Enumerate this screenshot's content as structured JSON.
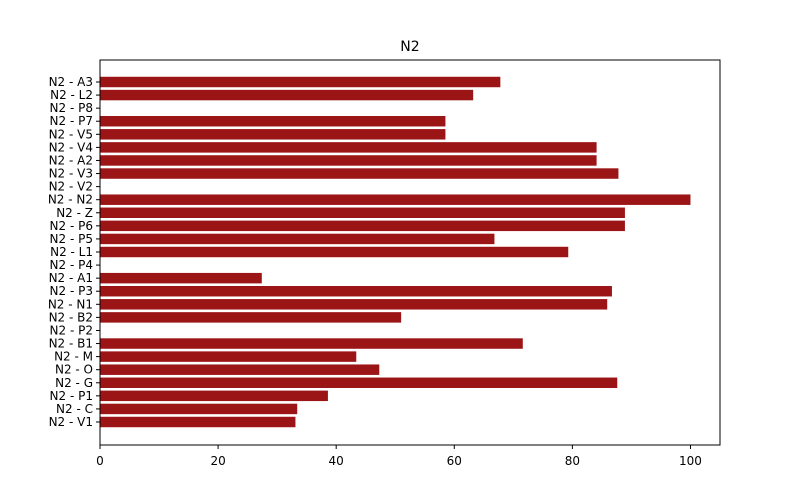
{
  "chart_data": {
    "type": "bar",
    "orientation": "horizontal",
    "title": "N2",
    "xlabel": "",
    "ylabel": "",
    "xlim": [
      0,
      105
    ],
    "x_ticks": [
      0,
      20,
      40,
      60,
      80,
      100
    ],
    "grid": false,
    "bar_color": "#9b1516",
    "categories": [
      "N2 - A3",
      "N2 - L2",
      "N2 - P8",
      "N2 - P7",
      "N2 - V5",
      "N2 - V4",
      "N2 - A2",
      "N2 - V3",
      "N2 - V2",
      "N2 - N2",
      "N2 - Z",
      "N2 - P6",
      "N2 - P5",
      "N2 - L1",
      "N2 - P4",
      "N2 - A1",
      "N2 - P3",
      "N2 - N1",
      "N2 - B2",
      "N2 - P2",
      "N2 - B1",
      "N2 - M",
      "N2 - O",
      "N2 - G",
      "N2 - P1",
      "N2 - C",
      "N2 - V1"
    ],
    "values": [
      67.8,
      63.2,
      0,
      58.5,
      58.5,
      84.1,
      84.1,
      87.8,
      0,
      100.0,
      88.9,
      88.9,
      66.8,
      79.3,
      0,
      27.4,
      86.7,
      85.9,
      51.0,
      0,
      71.6,
      43.4,
      47.3,
      87.6,
      38.6,
      33.4,
      33.1
    ]
  }
}
